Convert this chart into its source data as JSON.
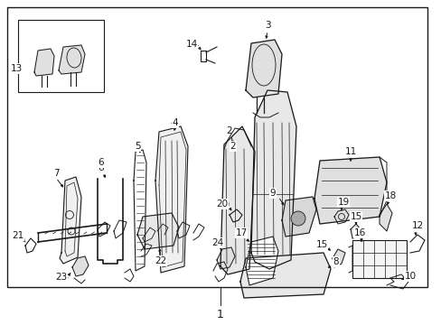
{
  "bg_color": "#ffffff",
  "line_color": "#1a1a1a",
  "text_color": "#1a1a1a",
  "fig_width": 4.89,
  "fig_height": 3.6,
  "dpi": 100,
  "bottom_label": "1"
}
